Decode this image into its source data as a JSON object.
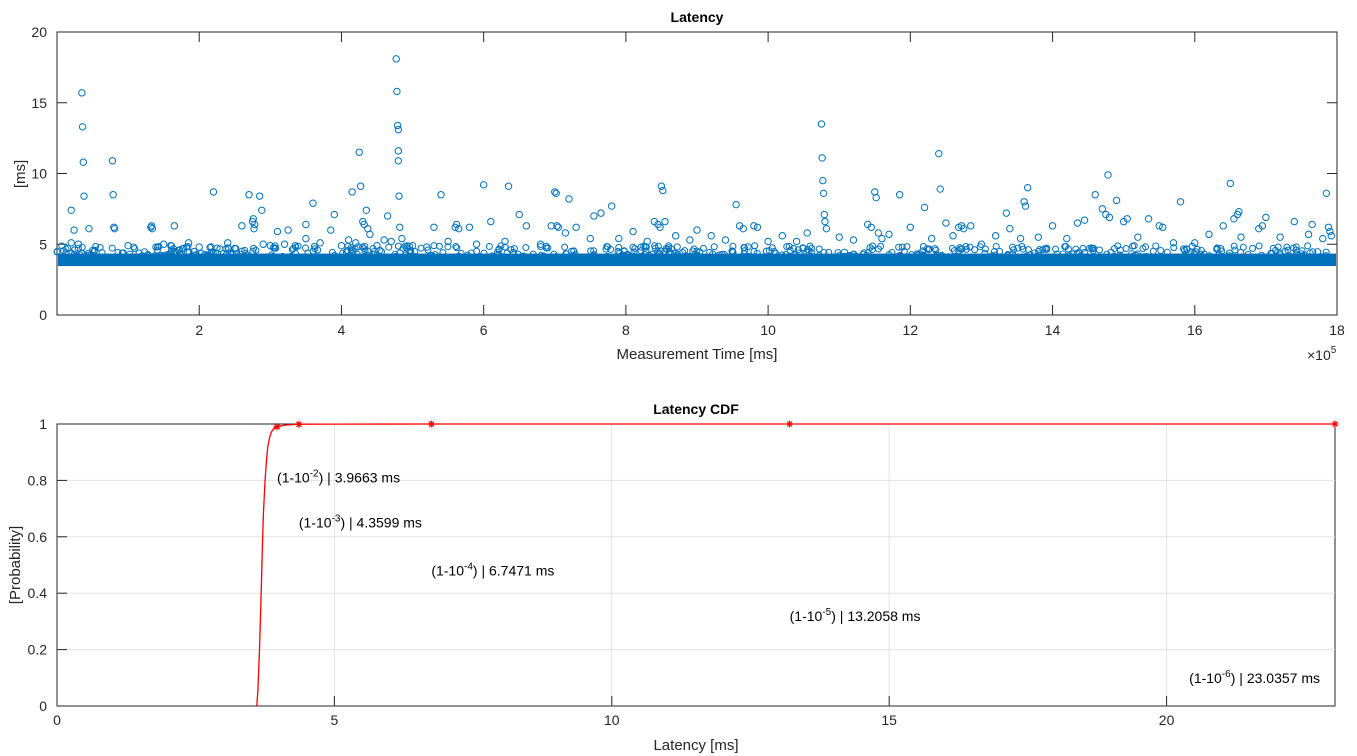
{
  "chart_data": [
    {
      "type": "scatter",
      "title": "Latency",
      "xlabel": "Measurement Time [ms]",
      "ylabel": "[ms]",
      "xlim": [
        0,
        18
      ],
      "ylim": [
        0,
        20
      ],
      "x_multiplier_label": "×10",
      "x_multiplier_exp": "5",
      "xticks": [
        2,
        4,
        6,
        8,
        10,
        12,
        14,
        16,
        18
      ],
      "yticks": [
        0,
        5,
        10,
        15,
        20
      ],
      "grid": false,
      "marker": "circle-open",
      "color": "#0072BD",
      "baseline_band": [
        3.6,
        4.2
      ],
      "points": [
        [
          0.2,
          5.1
        ],
        [
          0.25,
          4.6
        ],
        [
          0.3,
          5.0
        ],
        [
          0.35,
          15.7
        ],
        [
          0.36,
          13.3
        ],
        [
          0.37,
          10.8
        ],
        [
          0.38,
          8.4
        ],
        [
          0.2,
          7.4
        ],
        [
          0.24,
          6.0
        ],
        [
          0.45,
          6.1
        ],
        [
          0.78,
          10.9
        ],
        [
          0.79,
          8.5
        ],
        [
          0.8,
          6.2
        ],
        [
          0.81,
          6.1
        ],
        [
          1.0,
          4.9
        ],
        [
          1.32,
          6.2
        ],
        [
          1.33,
          6.3
        ],
        [
          1.34,
          6.1
        ],
        [
          1.5,
          5.0
        ],
        [
          1.6,
          4.9
        ],
        [
          1.65,
          6.3
        ],
        [
          1.85,
          5.1
        ],
        [
          2.0,
          4.8
        ],
        [
          2.2,
          8.7
        ],
        [
          2.4,
          5.1
        ],
        [
          2.5,
          4.7
        ],
        [
          2.6,
          6.3
        ],
        [
          2.7,
          8.5
        ],
        [
          2.75,
          6.6
        ],
        [
          2.76,
          6.8
        ],
        [
          2.77,
          6.1
        ],
        [
          2.78,
          6.4
        ],
        [
          2.85,
          8.4
        ],
        [
          2.88,
          7.4
        ],
        [
          2.9,
          5.0
        ],
        [
          3.0,
          4.9
        ],
        [
          3.1,
          5.9
        ],
        [
          3.2,
          5.0
        ],
        [
          3.25,
          6.0
        ],
        [
          3.35,
          4.9
        ],
        [
          3.5,
          5.4
        ],
        [
          3.5,
          6.4
        ],
        [
          3.6,
          7.9
        ],
        [
          3.7,
          5.1
        ],
        [
          3.85,
          6.0
        ],
        [
          3.9,
          7.1
        ],
        [
          4.0,
          4.9
        ],
        [
          4.1,
          5.3
        ],
        [
          4.15,
          8.7
        ],
        [
          4.2,
          5.1
        ],
        [
          4.25,
          11.5
        ],
        [
          4.27,
          9.1
        ],
        [
          4.3,
          6.6
        ],
        [
          4.32,
          6.4
        ],
        [
          4.35,
          7.4
        ],
        [
          4.37,
          6.1
        ],
        [
          4.4,
          5.7
        ],
        [
          4.5,
          4.9
        ],
        [
          4.6,
          5.3
        ],
        [
          4.65,
          7.0
        ],
        [
          4.7,
          5.2
        ],
        [
          4.77,
          18.1
        ],
        [
          4.78,
          15.8
        ],
        [
          4.79,
          13.4
        ],
        [
          4.8,
          13.1
        ],
        [
          4.8,
          11.6
        ],
        [
          4.8,
          10.9
        ],
        [
          4.81,
          8.4
        ],
        [
          4.82,
          6.2
        ],
        [
          4.85,
          5.4
        ],
        [
          5.0,
          4.9
        ],
        [
          5.2,
          4.8
        ],
        [
          5.3,
          6.2
        ],
        [
          5.4,
          8.5
        ],
        [
          5.5,
          5.2
        ],
        [
          5.6,
          6.2
        ],
        [
          5.62,
          6.4
        ],
        [
          5.65,
          6.1
        ],
        [
          5.8,
          6.2
        ],
        [
          5.9,
          5.0
        ],
        [
          6.0,
          9.2
        ],
        [
          6.1,
          6.6
        ],
        [
          6.3,
          5.2
        ],
        [
          6.35,
          9.1
        ],
        [
          6.5,
          7.1
        ],
        [
          6.6,
          6.3
        ],
        [
          6.8,
          5.0
        ],
        [
          6.95,
          6.3
        ],
        [
          7.0,
          8.7
        ],
        [
          7.02,
          8.6
        ],
        [
          7.03,
          6.3
        ],
        [
          7.05,
          6.2
        ],
        [
          7.15,
          5.8
        ],
        [
          7.2,
          8.2
        ],
        [
          7.3,
          6.2
        ],
        [
          7.5,
          5.4
        ],
        [
          7.55,
          7.0
        ],
        [
          7.65,
          7.2
        ],
        [
          7.8,
          7.7
        ],
        [
          7.9,
          5.4
        ],
        [
          8.1,
          5.9
        ],
        [
          8.3,
          5.2
        ],
        [
          8.4,
          6.6
        ],
        [
          8.45,
          6.4
        ],
        [
          8.48,
          6.2
        ],
        [
          8.5,
          9.1
        ],
        [
          8.52,
          8.8
        ],
        [
          8.55,
          6.6
        ],
        [
          8.7,
          5.6
        ],
        [
          8.9,
          5.3
        ],
        [
          9.0,
          6.0
        ],
        [
          9.2,
          5.6
        ],
        [
          9.4,
          5.3
        ],
        [
          9.55,
          7.8
        ],
        [
          9.6,
          6.3
        ],
        [
          9.65,
          6.1
        ],
        [
          9.8,
          6.3
        ],
        [
          9.85,
          6.2
        ],
        [
          10.0,
          5.2
        ],
        [
          10.2,
          5.6
        ],
        [
          10.4,
          5.2
        ],
        [
          10.55,
          5.8
        ],
        [
          10.75,
          13.5
        ],
        [
          10.76,
          11.1
        ],
        [
          10.77,
          9.5
        ],
        [
          10.78,
          8.6
        ],
        [
          10.79,
          7.1
        ],
        [
          10.8,
          6.6
        ],
        [
          10.82,
          6.1
        ],
        [
          11.0,
          5.5
        ],
        [
          11.2,
          5.3
        ],
        [
          11.4,
          6.4
        ],
        [
          11.45,
          6.2
        ],
        [
          11.5,
          8.7
        ],
        [
          11.52,
          8.3
        ],
        [
          11.55,
          5.8
        ],
        [
          11.6,
          5.4
        ],
        [
          11.7,
          5.7
        ],
        [
          11.85,
          8.5
        ],
        [
          12.0,
          6.2
        ],
        [
          12.2,
          7.6
        ],
        [
          12.3,
          5.4
        ],
        [
          12.4,
          11.4
        ],
        [
          12.42,
          8.9
        ],
        [
          12.5,
          6.5
        ],
        [
          12.6,
          5.6
        ],
        [
          12.68,
          6.2
        ],
        [
          12.72,
          6.3
        ],
        [
          12.75,
          6.1
        ],
        [
          12.85,
          6.3
        ],
        [
          13.0,
          5.0
        ],
        [
          13.2,
          5.6
        ],
        [
          13.35,
          7.2
        ],
        [
          13.4,
          6.1
        ],
        [
          13.55,
          5.4
        ],
        [
          13.6,
          8.0
        ],
        [
          13.62,
          7.7
        ],
        [
          13.65,
          9.0
        ],
        [
          13.8,
          5.5
        ],
        [
          14.0,
          6.3
        ],
        [
          14.2,
          5.4
        ],
        [
          14.35,
          6.5
        ],
        [
          14.45,
          6.7
        ],
        [
          14.6,
          8.5
        ],
        [
          14.7,
          7.5
        ],
        [
          14.75,
          7.1
        ],
        [
          14.78,
          9.9
        ],
        [
          14.8,
          6.9
        ],
        [
          14.9,
          8.1
        ],
        [
          15.0,
          6.6
        ],
        [
          15.05,
          6.8
        ],
        [
          15.2,
          5.5
        ],
        [
          15.35,
          6.8
        ],
        [
          15.5,
          6.3
        ],
        [
          15.55,
          6.2
        ],
        [
          15.7,
          5.1
        ],
        [
          15.8,
          8.0
        ],
        [
          16.0,
          5.1
        ],
        [
          16.2,
          5.7
        ],
        [
          16.4,
          6.3
        ],
        [
          16.5,
          9.3
        ],
        [
          16.55,
          6.8
        ],
        [
          16.6,
          7.1
        ],
        [
          16.62,
          7.3
        ],
        [
          16.65,
          5.5
        ],
        [
          16.9,
          6.1
        ],
        [
          16.95,
          6.3
        ],
        [
          17.0,
          6.9
        ],
        [
          17.2,
          5.5
        ],
        [
          17.4,
          6.6
        ],
        [
          17.6,
          5.7
        ],
        [
          17.65,
          6.4
        ],
        [
          17.8,
          5.4
        ],
        [
          17.85,
          8.6
        ],
        [
          17.88,
          6.2
        ],
        [
          17.9,
          5.9
        ],
        [
          17.92,
          5.6
        ]
      ]
    },
    {
      "type": "line",
      "title": "Latency CDF",
      "xlabel": "Latency [ms]",
      "ylabel": "[Probability]",
      "xlim": [
        0,
        23.0357
      ],
      "ylim": [
        0,
        1
      ],
      "xticks": [
        0,
        5,
        10,
        15,
        20
      ],
      "yticks": [
        0,
        0.2,
        0.4,
        0.6,
        0.8,
        1
      ],
      "grid": true,
      "color": "#FF0000",
      "series": [
        {
          "x": [
            3.6,
            3.62,
            3.65,
            3.68,
            3.7,
            3.72,
            3.75,
            3.78,
            3.8,
            3.83,
            3.86,
            3.9,
            3.93,
            3.9663,
            4.1,
            4.3599,
            5.0,
            6.7471,
            10.0,
            13.2058,
            18.0,
            23.0357
          ],
          "y": [
            0,
            0.05,
            0.2,
            0.4,
            0.55,
            0.68,
            0.8,
            0.88,
            0.92,
            0.95,
            0.97,
            0.982,
            0.987,
            0.99,
            0.996,
            0.999,
            0.9995,
            0.9999,
            0.99995,
            0.99999,
            0.999995,
            0.999999
          ]
        }
      ],
      "markers": [
        {
          "x": 3.9663,
          "y": 0.99
        },
        {
          "x": 4.3599,
          "y": 0.999
        },
        {
          "x": 6.7471,
          "y": 0.9999
        },
        {
          "x": 13.2058,
          "y": 0.99999
        },
        {
          "x": 23.0357,
          "y": 0.999999
        }
      ],
      "annotations": [
        {
          "pre": "(1-10",
          "exp": "-2",
          "post": ") | 3.9663 ms",
          "x": 3.9663,
          "y": 0.81
        },
        {
          "pre": "(1-10",
          "exp": "-3",
          "post": ") | 4.3599 ms",
          "x": 4.3599,
          "y": 0.65
        },
        {
          "pre": "(1-10",
          "exp": "-4",
          "post": ") | 6.7471 ms",
          "x": 6.7471,
          "y": 0.48
        },
        {
          "pre": "(1-10",
          "exp": "-5",
          "post": ") | 13.2058 ms",
          "x": 13.2058,
          "y": 0.32
        },
        {
          "pre": "(1-10",
          "exp": "-6",
          "post": ") | 23.0357 ms",
          "x": 23.0357,
          "y": 0.1
        }
      ]
    }
  ]
}
